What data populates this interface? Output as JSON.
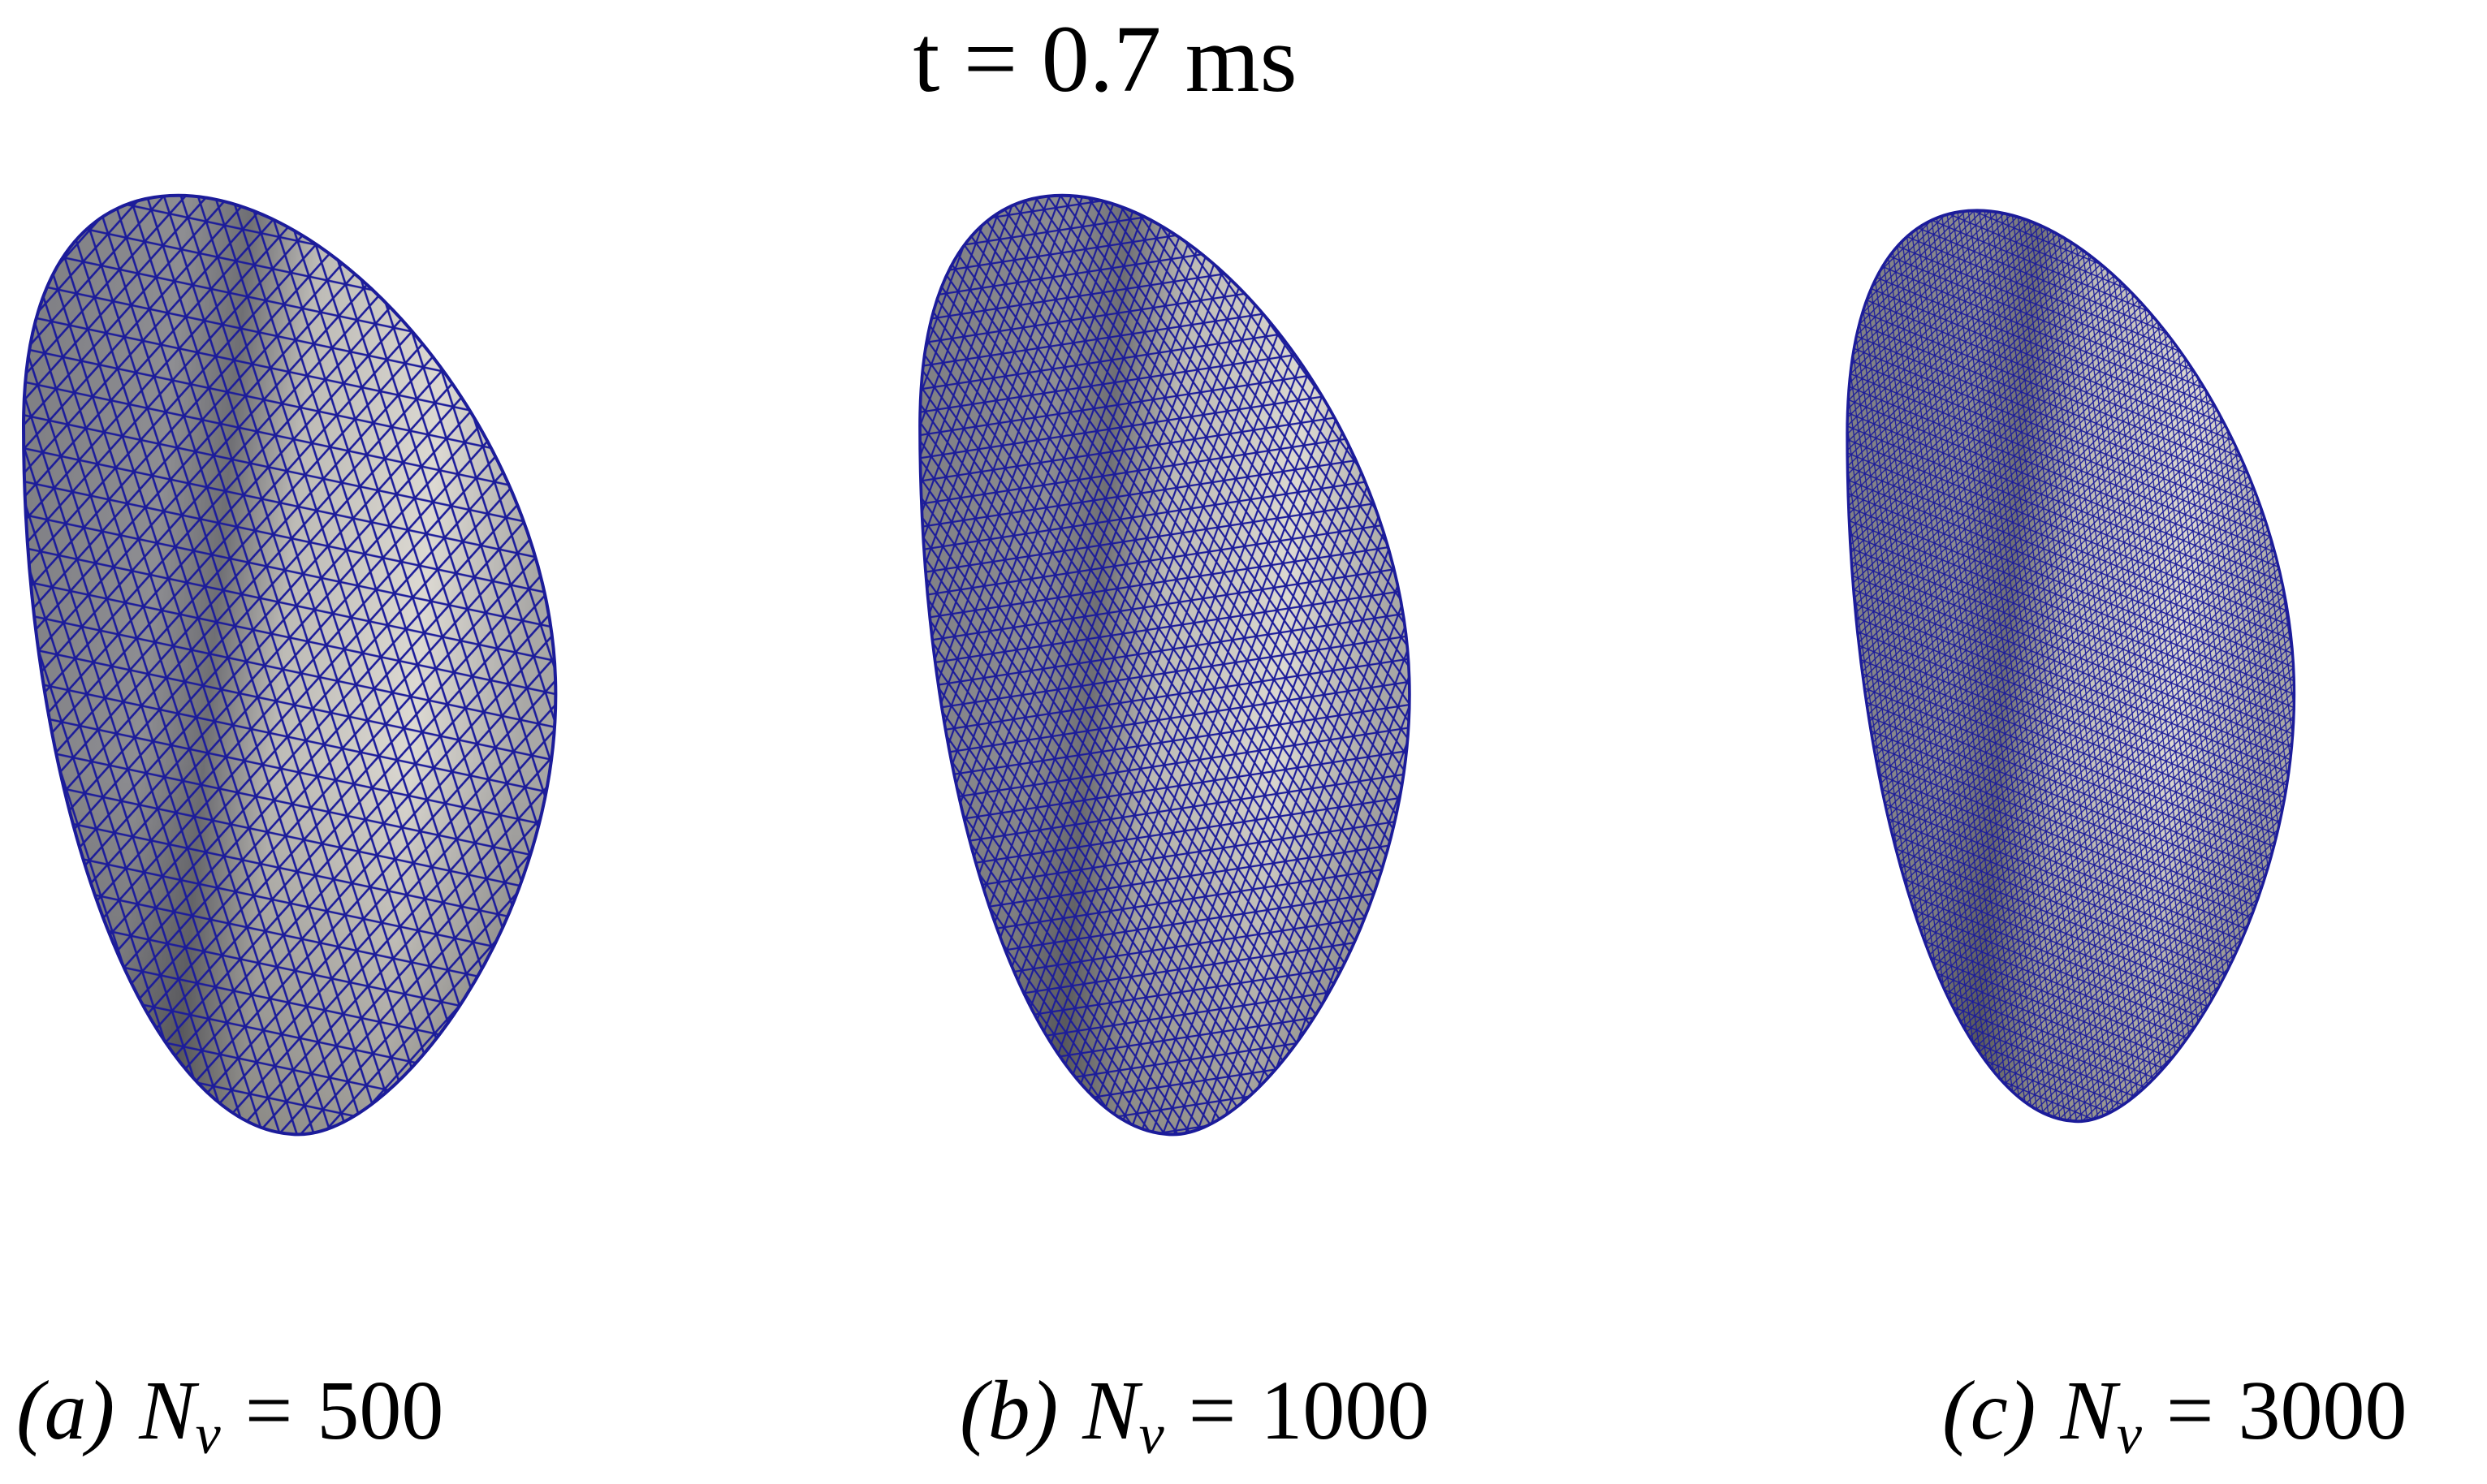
{
  "title": "t = 0.7 ms",
  "panels": [
    {
      "tag": "(a)",
      "variable": "N",
      "subscript": "v",
      "equals": "=",
      "value": 500
    },
    {
      "tag": "(b)",
      "variable": "N",
      "subscript": "v",
      "equals": "=",
      "value": 1000
    },
    {
      "tag": "(c)",
      "variable": "N",
      "subscript": "v",
      "equals": "=",
      "value": 3000
    }
  ]
}
